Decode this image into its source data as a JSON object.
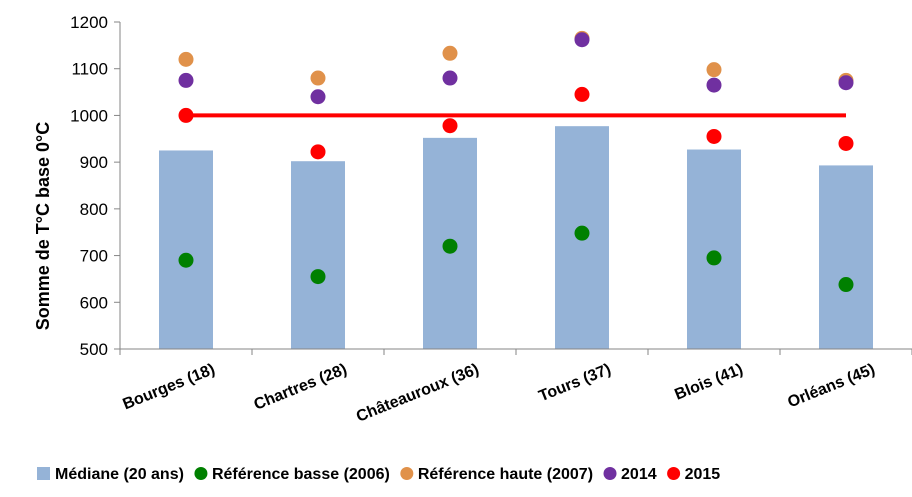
{
  "chart_data": {
    "type": "bar",
    "ylabel": "Somme de T°C base 0°C",
    "ylim": [
      500,
      1200
    ],
    "yticks": [
      500,
      600,
      700,
      800,
      900,
      1000,
      1100,
      1200
    ],
    "categories": [
      "Bourges (18)",
      "Chartres (28)",
      "Châteauroux (36)",
      "Tours (37)",
      "Blois (41)",
      "Orléans (45)"
    ],
    "bar_series": {
      "name": "Médiane (20 ans)",
      "values": [
        925,
        902,
        952,
        977,
        927,
        893
      ],
      "color": "#95b3d7"
    },
    "point_series": [
      {
        "name": "Référence basse (2006)",
        "values": [
          690,
          655,
          720,
          748,
          695,
          638
        ],
        "color": "#008000"
      },
      {
        "name": "Référence haute (2007)",
        "values": [
          1120,
          1080,
          1133,
          1165,
          1098,
          1075
        ],
        "color": "#e0914a"
      },
      {
        "name": "2014",
        "values": [
          1075,
          1040,
          1080,
          1162,
          1065,
          1070
        ],
        "color": "#7030a0"
      },
      {
        "name": "2015",
        "values": [
          1000,
          922,
          978,
          1045,
          955,
          940
        ],
        "color": "#ff0000"
      }
    ],
    "reference_line": {
      "value": 1000,
      "color": "#ff0000"
    },
    "grid": false,
    "legend_position": "bottom"
  }
}
